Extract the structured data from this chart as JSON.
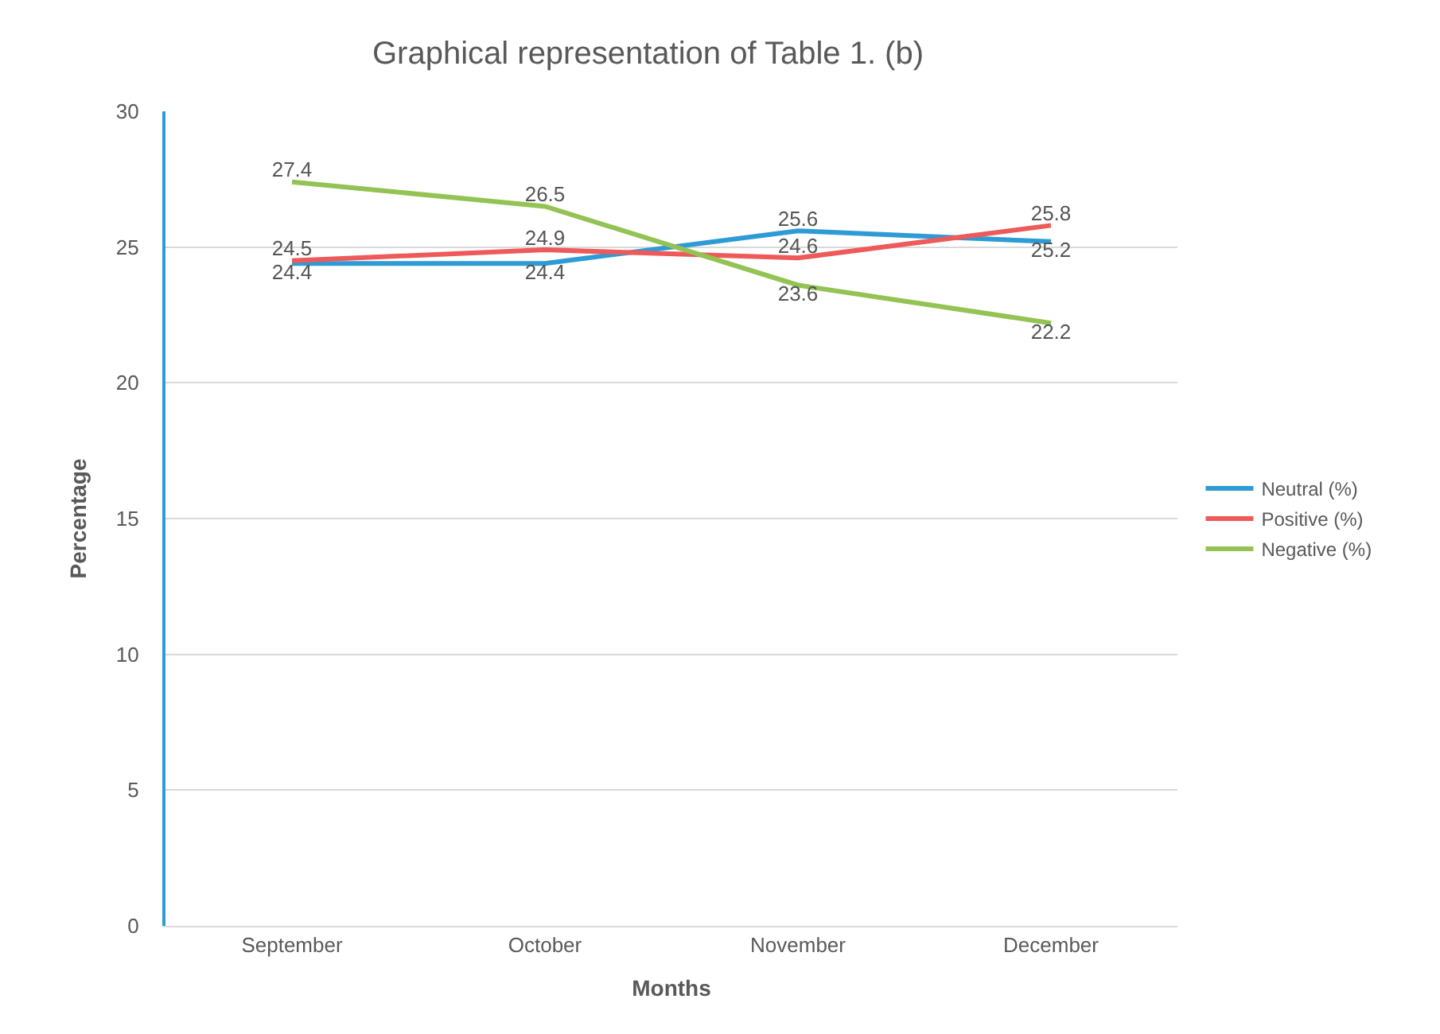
{
  "chart_data": {
    "type": "line",
    "title": "Graphical representation of Table 1. (b)",
    "xlabel": "Months",
    "ylabel": "Percentage",
    "categories": [
      "September",
      "October",
      "November",
      "December"
    ],
    "series": [
      {
        "name": "Neutral (%)",
        "color": "#2e9bd6",
        "values": [
          24.4,
          24.4,
          25.6,
          25.2
        ]
      },
      {
        "name": "Positive (%)",
        "color": "#ee5a5a",
        "values": [
          24.5,
          24.9,
          24.6,
          25.8
        ]
      },
      {
        "name": "Negative (%)",
        "color": "#92c353",
        "values": [
          27.4,
          26.5,
          23.6,
          22.2
        ]
      }
    ],
    "ylim": [
      0,
      30
    ],
    "yticks": [
      0,
      5,
      10,
      15,
      20,
      25,
      30
    ],
    "grid": "y",
    "legend": "right",
    "data_labels": true,
    "marker": "none",
    "line_style": "solid"
  }
}
